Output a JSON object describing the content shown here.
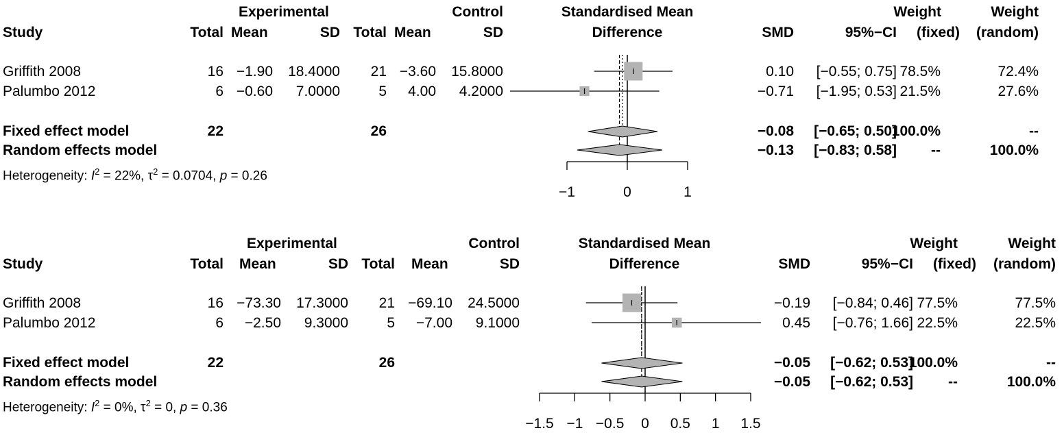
{
  "chart_data": [
    {
      "type": "forest",
      "headers": {
        "study": "Study",
        "experimental": "Experimental",
        "control": "Control",
        "total": "Total",
        "mean": "Mean",
        "sd": "SD",
        "effect_line1": "Standardised Mean",
        "effect_line2": "Difference",
        "smd": "SMD",
        "ci": "95%−CI",
        "weight": "Weight",
        "fixed": "(fixed)",
        "random": "(random)"
      },
      "xlim": [
        -1,
        1
      ],
      "ticks": [
        -1,
        0,
        1
      ],
      "tick_labels": [
        "−1",
        "0",
        "1"
      ],
      "studies": [
        {
          "name": "Griffith 2008",
          "e_total": "16",
          "e_mean": "−1.90",
          "e_sd": "18.4000",
          "c_total": "21",
          "c_mean": "−3.60",
          "c_sd": "15.8000",
          "smd": 0.1,
          "lower": -0.55,
          "upper": 0.75,
          "smd_text": "0.10",
          "ci_text": "[−0.55; 0.75]",
          "w_fixed": "78.5%",
          "w_random": "72.4%",
          "weight": 78.5
        },
        {
          "name": "Palumbo 2012",
          "e_total": "6",
          "e_mean": "−0.60",
          "e_sd": "7.0000",
          "c_total": "5",
          "c_mean": "4.00",
          "c_sd": "4.2000",
          "smd": -0.71,
          "lower": -1.95,
          "upper": 0.53,
          "smd_text": "−0.71",
          "ci_text": "[−1.95; 0.53]",
          "w_fixed": "21.5%",
          "w_random": "27.6%",
          "weight": 21.5
        }
      ],
      "fixed": {
        "label": "Fixed effect model",
        "e_total": "22",
        "c_total": "26",
        "smd": -0.08,
        "lower": -0.65,
        "upper": 0.5,
        "smd_text": "−0.08",
        "ci_text": "[−0.65; 0.50]",
        "w_fixed": "100.0%",
        "w_random": "--"
      },
      "random": {
        "label": "Random effects model",
        "smd": -0.13,
        "lower": -0.83,
        "upper": 0.58,
        "smd_text": "−0.13",
        "ci_text": "[−0.83; 0.58]",
        "w_fixed": "--",
        "w_random": "100.0%"
      },
      "heterogeneity": {
        "prefix": "Heterogeneity: ",
        "I2": " = 22%, ",
        "tau2": " = 0.0704, ",
        "p": " = 0.26"
      }
    },
    {
      "type": "forest",
      "headers": {
        "study": "Study",
        "experimental": "Experimental",
        "control": "Control",
        "total": "Total",
        "mean": "Mean",
        "sd": "SD",
        "effect_line1": "Standardised Mean",
        "effect_line2": "Difference",
        "smd": "SMD",
        "ci": "95%−CI",
        "weight": "Weight",
        "fixed": "(fixed)",
        "random": "(random)"
      },
      "xlim": [
        -1.5,
        1.5
      ],
      "ticks": [
        -1.5,
        -1,
        -0.5,
        0,
        0.5,
        1,
        1.5
      ],
      "tick_labels": [
        "−1.5",
        "−1",
        "−0.5",
        "0",
        "0.5",
        "1",
        "1.5"
      ],
      "studies": [
        {
          "name": "Griffith 2008",
          "e_total": "16",
          "e_mean": "−73.30",
          "e_sd": "17.3000",
          "c_total": "21",
          "c_mean": "−69.10",
          "c_sd": "24.5000",
          "smd": -0.19,
          "lower": -0.84,
          "upper": 0.46,
          "smd_text": "−0.19",
          "ci_text": "[−0.84; 0.46]",
          "w_fixed": "77.5%",
          "w_random": "77.5%",
          "weight": 77.5
        },
        {
          "name": "Palumbo 2012",
          "e_total": "6",
          "e_mean": "−2.50",
          "e_sd": "9.3000",
          "c_total": "5",
          "c_mean": "−7.00",
          "c_sd": "9.1000",
          "smd": 0.45,
          "lower": -0.76,
          "upper": 1.66,
          "smd_text": "0.45",
          "ci_text": "[−0.76; 1.66]",
          "w_fixed": "22.5%",
          "w_random": "22.5%",
          "weight": 22.5
        }
      ],
      "fixed": {
        "label": "Fixed effect model",
        "e_total": "22",
        "c_total": "26",
        "smd": -0.05,
        "lower": -0.62,
        "upper": 0.53,
        "smd_text": "−0.05",
        "ci_text": "[−0.62; 0.53]",
        "w_fixed": "100.0%",
        "w_random": "--"
      },
      "random": {
        "label": "Random effects model",
        "smd": -0.05,
        "lower": -0.62,
        "upper": 0.53,
        "smd_text": "−0.05",
        "ci_text": "[−0.62; 0.53]",
        "w_fixed": "--",
        "w_random": "100.0%"
      },
      "heterogeneity": {
        "prefix": "Heterogeneity: ",
        "I2": " = 0%, ",
        "tau2": " = 0, ",
        "p": " = 0.36"
      }
    }
  ],
  "colors": {
    "square": "#b3b3b3",
    "diamond": "#b3b3b3",
    "line": "#000000"
  }
}
